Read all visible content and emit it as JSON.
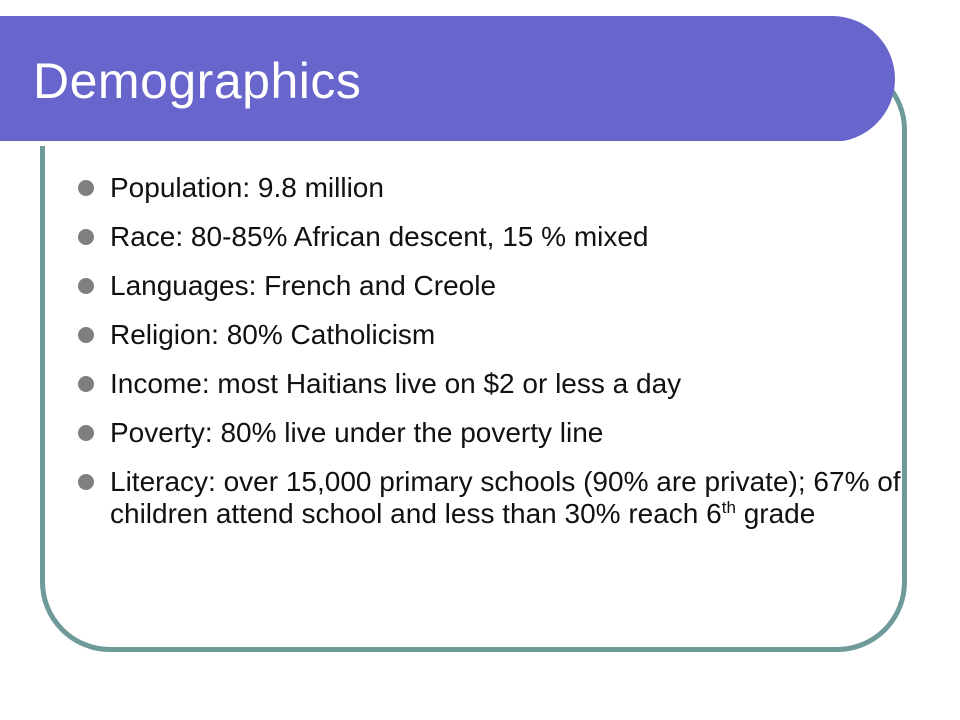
{
  "slide": {
    "title": "Demographics",
    "bullets": [
      {
        "text": "Population:  9.8 million"
      },
      {
        "text": "Race:  80-85% African descent, 15 % mixed"
      },
      {
        "text": "Languages:  French and Creole"
      },
      {
        "text": "Religion:  80% Catholicism"
      },
      {
        "text": "Income:  most Haitians live on $2 or less a day"
      },
      {
        "text": "Poverty:  80% live under the poverty line"
      },
      {
        "text": "Literacy:  over 15,000 primary schools (90% are private); 67% of children attend school and less than 30% reach 6",
        "sup": "th",
        "tail": " grade"
      }
    ]
  },
  "colors": {
    "title_bar": "#6866cc",
    "frame_border": "#6e9a9a",
    "bullet_dot": "#7f7f7f",
    "text": "#111111"
  }
}
